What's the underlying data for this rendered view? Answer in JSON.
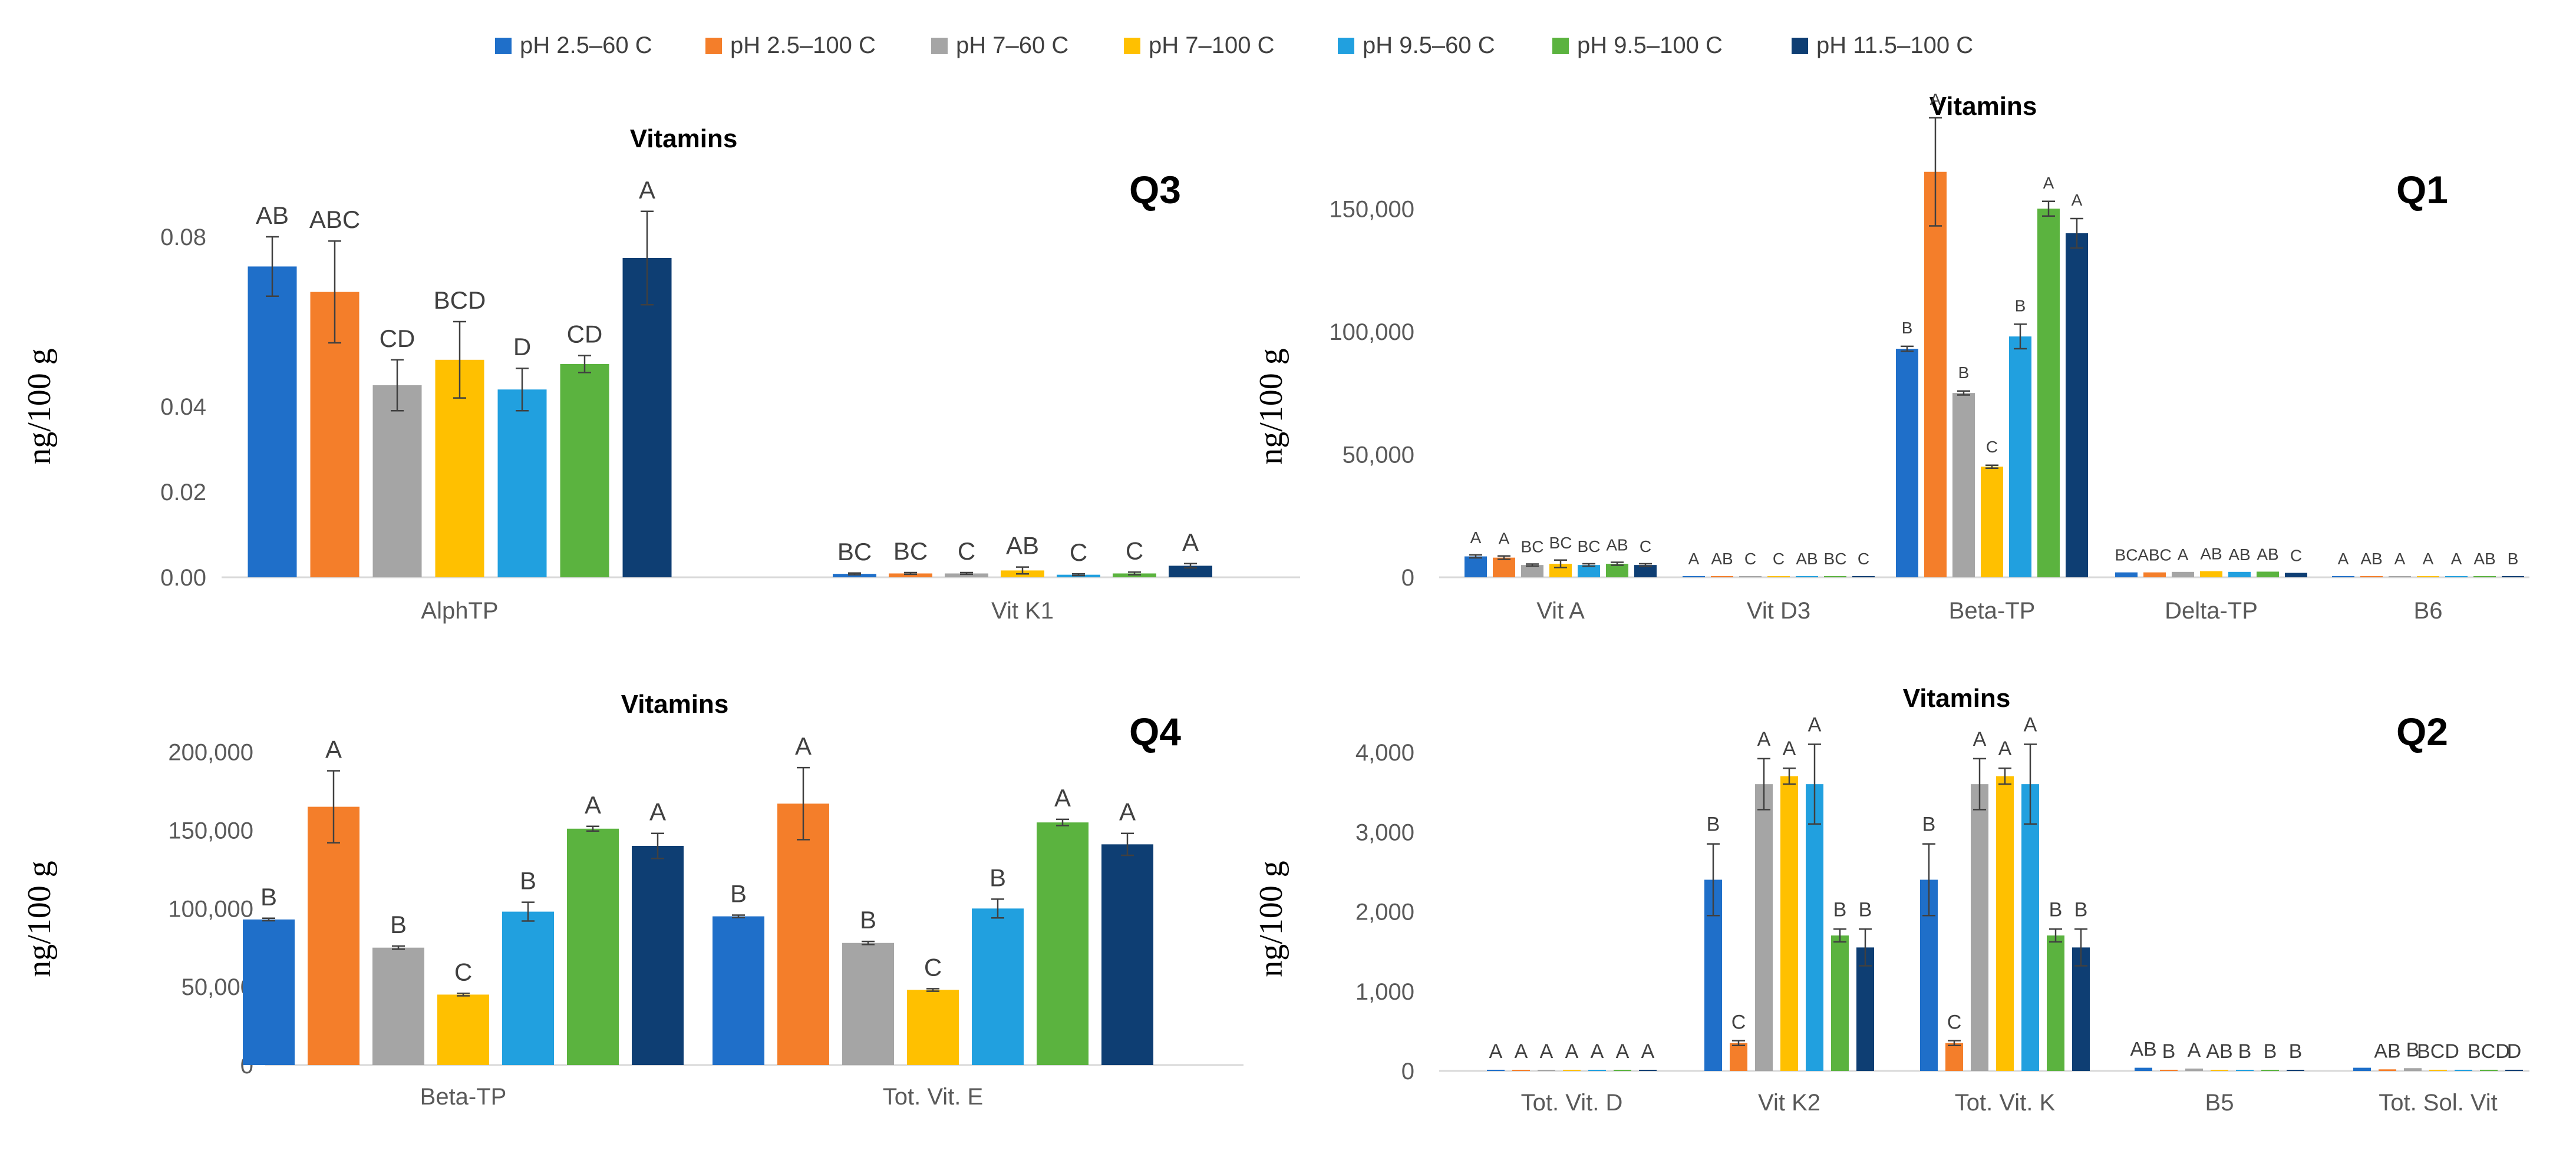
{
  "legend": [
    {
      "name": "pH 2.5–60 C",
      "color": "#1F6FC9"
    },
    {
      "name": "pH 2.5–100 C",
      "color": "#F47E2A"
    },
    {
      "name": "pH 7–60 C",
      "color": "#A5A5A5"
    },
    {
      "name": "pH 7–100 C",
      "color": "#FFC000"
    },
    {
      "name": "pH 9.5–60 C",
      "color": "#21A0DF"
    },
    {
      "name": "pH 9.5–100 C",
      "color": "#5BB33F"
    },
    {
      "name": "pH 11.5–100 C",
      "color": "#0E3E73"
    }
  ],
  "chart_data": [
    {
      "type": "bar",
      "panel": "Q3",
      "title": "Vitamins",
      "ylabel": "ng/100  g",
      "ylim": [
        0,
        0.09
      ],
      "yticks": [
        "0.00",
        "0.02",
        "0.04",
        "0.08"
      ],
      "ytick_values": [
        0,
        0.02,
        0.04,
        0.08
      ],
      "categories": [
        "AlphTP",
        "Vit K1"
      ],
      "values": [
        [
          0.073,
          0.067,
          0.045,
          0.051,
          0.044,
          0.05,
          0.075
        ],
        [
          0.0008,
          0.0009,
          0.0009,
          0.0016,
          0.0006,
          0.0009,
          0.0027
        ]
      ],
      "errors": [
        [
          0.007,
          0.012,
          0.006,
          0.009,
          0.005,
          0.002,
          0.011
        ],
        [
          0.0002,
          0.0002,
          0.0002,
          0.0008,
          0.0002,
          0.0003,
          0.0005
        ]
      ],
      "sig_labels": [
        [
          "AB",
          "ABC",
          "CD",
          "BCD",
          "D",
          "CD",
          "A"
        ],
        [
          "BC",
          "BC",
          "C",
          "AB",
          "C",
          "C",
          "A"
        ]
      ]
    },
    {
      "type": "bar",
      "panel": "Q1",
      "title": "Vitamins",
      "ylabel": "ng/100  g",
      "ylim": [
        0,
        175000
      ],
      "yticks": [
        "0",
        "50,000",
        "100,000",
        "150,000"
      ],
      "ytick_values": [
        0,
        50000,
        100000,
        150000
      ],
      "categories": [
        "Vit A",
        "Vit D3",
        "Beta-TP",
        "Delta-TP",
        "B6"
      ],
      "values": [
        [
          8500,
          8000,
          5000,
          5500,
          5000,
          5500,
          5000
        ],
        [
          150,
          120,
          100,
          80,
          120,
          100,
          80
        ],
        [
          93000,
          165000,
          75000,
          45000,
          98000,
          150000,
          140000
        ],
        [
          2000,
          2000,
          2200,
          2500,
          2200,
          2300,
          1800
        ],
        [
          150,
          130,
          120,
          120,
          120,
          130,
          120
        ]
      ],
      "errors": [
        [
          600,
          700,
          400,
          1500,
          500,
          600,
          500
        ],
        [
          0,
          0,
          0,
          0,
          0,
          0,
          0
        ],
        [
          1000,
          22000,
          800,
          600,
          5000,
          3000,
          6000
        ],
        [
          0,
          0,
          0,
          0,
          0,
          0,
          0
        ],
        [
          0,
          0,
          0,
          0,
          0,
          0,
          0
        ]
      ],
      "sig_labels": [
        [
          "A",
          "A",
          "BC",
          "BC",
          "BC",
          "AB",
          "C"
        ],
        [
          "A",
          "AB",
          "C",
          "C",
          "AB",
          "BC",
          "C"
        ],
        [
          "B",
          "A",
          "B",
          "C",
          "B",
          "A",
          "A"
        ],
        [
          "BC",
          "ABC",
          "A",
          "AB",
          "AB",
          "AB",
          "C"
        ],
        [
          "A",
          "AB",
          "A",
          "A",
          "A",
          "AB",
          "B"
        ]
      ]
    },
    {
      "type": "bar",
      "panel": "Q4",
      "title": "Vitamins",
      "ylabel": "ng/100  g",
      "ylim": [
        0,
        210000
      ],
      "yticks": [
        "0",
        "50,000",
        "100,000",
        "150,000",
        "200,000"
      ],
      "ytick_values": [
        0,
        50000,
        100000,
        150000,
        200000
      ],
      "categories": [
        "Beta-TP",
        "Tot. Vit. E"
      ],
      "values": [
        [
          93000,
          165000,
          75000,
          45000,
          98000,
          151000,
          140000
        ],
        [
          95000,
          167000,
          78000,
          48000,
          100000,
          155000,
          141000
        ]
      ],
      "errors": [
        [
          800,
          23000,
          1000,
          800,
          6000,
          1500,
          8000
        ],
        [
          800,
          23000,
          1000,
          800,
          6000,
          2000,
          7000
        ]
      ],
      "sig_labels": [
        [
          "B",
          "A",
          "B",
          "C",
          "B",
          "A",
          "A"
        ],
        [
          "B",
          "A",
          "B",
          "C",
          "B",
          "A",
          "A"
        ]
      ]
    },
    {
      "type": "bar",
      "panel": "Q2",
      "title": "Vitamins",
      "ylabel": "ng/100  g",
      "ylim": [
        0,
        4200
      ],
      "yticks": [
        "0",
        "1,000",
        "2,000",
        "3,000",
        "4,000"
      ],
      "ytick_values": [
        0,
        1000,
        2000,
        3000,
        4000
      ],
      "categories": [
        "Tot. Vit. D",
        "Vit K2",
        "Tot. Vit. K",
        "B5",
        "Tot. Sol. Vit"
      ],
      "values": [
        [
          15,
          12,
          12,
          12,
          12,
          12,
          12
        ],
        [
          2400,
          350,
          3600,
          3700,
          3600,
          1700,
          1550
        ],
        [
          2400,
          350,
          3600,
          3700,
          3600,
          1700,
          1550
        ],
        [
          40,
          15,
          30,
          10,
          10,
          10,
          5
        ],
        [
          40,
          20,
          35,
          15,
          15,
          15,
          15
        ]
      ],
      "errors": [
        [
          0,
          0,
          0,
          0,
          0,
          0,
          0
        ],
        [
          450,
          30,
          320,
          100,
          500,
          80,
          230
        ],
        [
          450,
          30,
          320,
          100,
          500,
          80,
          230
        ],
        [
          0,
          0,
          0,
          0,
          0,
          0,
          0
        ],
        [
          0,
          0,
          0,
          0,
          0,
          0,
          0
        ]
      ],
      "sig_labels": [
        [
          "A",
          "A",
          "A",
          "A",
          "A",
          "A",
          "A"
        ],
        [
          "B",
          "C",
          "A",
          "A",
          "A",
          "B",
          "B"
        ],
        [
          "B",
          "C",
          "A",
          "A",
          "A",
          "B",
          "B"
        ],
        [
          "AB",
          "B",
          "A",
          "AB",
          "B",
          "B",
          "B"
        ],
        [
          "",
          "AB",
          "B",
          "BCD",
          "",
          "BCD",
          "D"
        ]
      ]
    }
  ]
}
